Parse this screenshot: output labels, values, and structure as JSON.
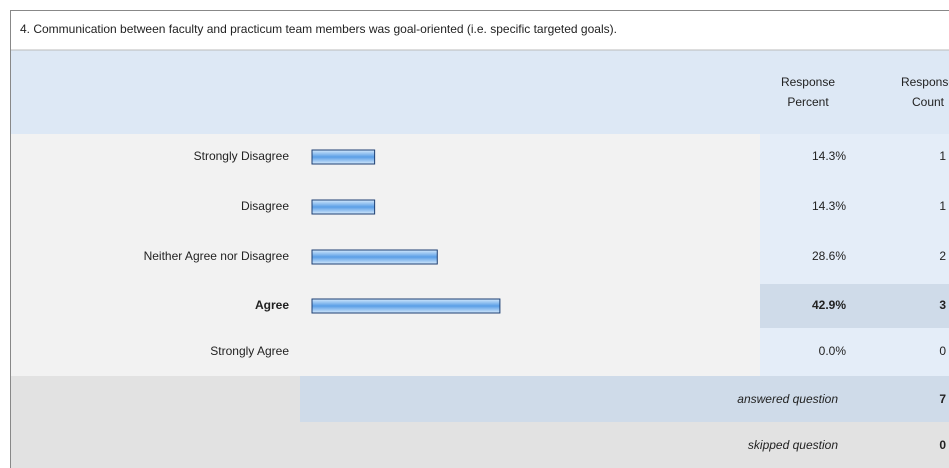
{
  "chart_data": {
    "type": "bar",
    "title": "4. Communication between faculty and practicum team members was goal-oriented (i.e. specific targeted goals).",
    "column_headers": [
      [
        "Response",
        "Percent"
      ],
      [
        "Response",
        "Count"
      ]
    ],
    "categories": [
      "Strongly Disagree",
      "Disagree",
      "Neither Agree nor Disagree",
      "Agree",
      "Strongly Agree"
    ],
    "values": [
      14.3,
      14.3,
      28.6,
      42.9,
      0.0
    ],
    "value_labels": [
      "14.3%",
      "14.3%",
      "28.6%",
      "42.9%",
      "0.0%"
    ],
    "counts": [
      1,
      1,
      2,
      3,
      0
    ],
    "color": "#6aaef0",
    "answered_label": "answered question",
    "answered": 7,
    "skipped_label": "skipped question",
    "skipped": 0
  }
}
